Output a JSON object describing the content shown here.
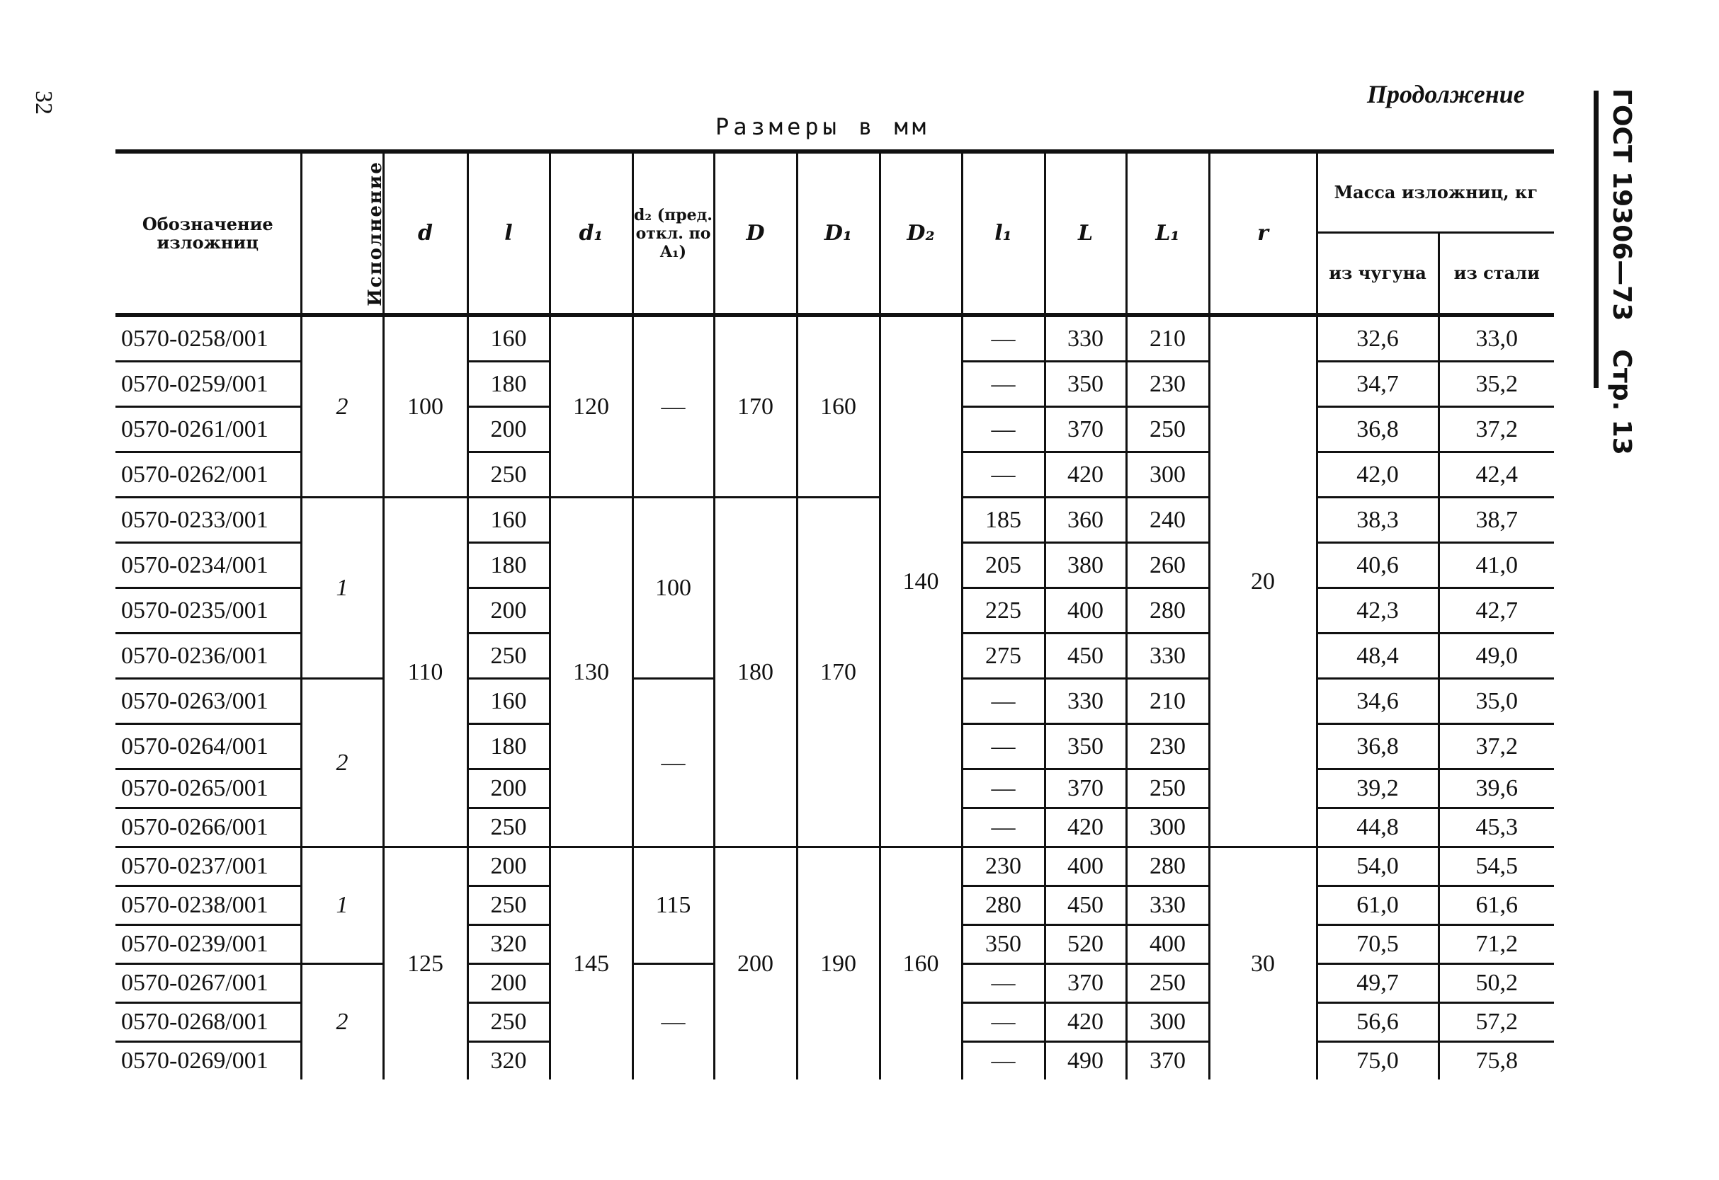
{
  "page_number": "32",
  "continuation": "Продолжение",
  "units_caption": "Размеры в мм",
  "side_header": {
    "standard": "ГОСТ 19306—73",
    "page": "Стр. 13"
  },
  "headers": {
    "designation": "Обозначение изложниц",
    "execution": "Исполнение",
    "d": "d",
    "l": "l",
    "d1": "d₁",
    "d2": "d₂ (пред. откл. по A₁)",
    "D": "D",
    "D1": "D₁",
    "D2": "D₂",
    "l1": "l₁",
    "L": "L",
    "L1": "L₁",
    "r": "r",
    "mass": "Масса изложниц, кг",
    "mass_iron": "из чугуна",
    "mass_steel": "из стали"
  },
  "rows": [
    {
      "designation": "0570-0258/001",
      "l": "160",
      "l1": "—",
      "L": "330",
      "L1": "210",
      "iron": "32,6",
      "steel": "33,0"
    },
    {
      "designation": "0570-0259/001",
      "l": "180",
      "l1": "—",
      "L": "350",
      "L1": "230",
      "iron": "34,7",
      "steel": "35,2"
    },
    {
      "designation": "0570-0261/001",
      "l": "200",
      "l1": "—",
      "L": "370",
      "L1": "250",
      "iron": "36,8",
      "steel": "37,2"
    },
    {
      "designation": "0570-0262/001",
      "l": "250",
      "l1": "—",
      "L": "420",
      "L1": "300",
      "iron": "42,0",
      "steel": "42,4"
    },
    {
      "designation": "0570-0233/001",
      "l": "160",
      "l1": "185",
      "L": "360",
      "L1": "240",
      "iron": "38,3",
      "steel": "38,7"
    },
    {
      "designation": "0570-0234/001",
      "l": "180",
      "l1": "205",
      "L": "380",
      "L1": "260",
      "iron": "40,6",
      "steel": "41,0"
    },
    {
      "designation": "0570-0235/001",
      "l": "200",
      "l1": "225",
      "L": "400",
      "L1": "280",
      "iron": "42,3",
      "steel": "42,7"
    },
    {
      "designation": "0570-0236/001",
      "l": "250",
      "l1": "275",
      "L": "450",
      "L1": "330",
      "iron": "48,4",
      "steel": "49,0"
    },
    {
      "designation": "0570-0263/001",
      "l": "160",
      "l1": "—",
      "L": "330",
      "L1": "210",
      "iron": "34,6",
      "steel": "35,0"
    },
    {
      "designation": "0570-0264/001",
      "l": "180",
      "l1": "—",
      "L": "350",
      "L1": "230",
      "iron": "36,8",
      "steel": "37,2"
    },
    {
      "designation": "0570-0265/001",
      "l": "200",
      "l1": "—",
      "L": "370",
      "L1": "250",
      "iron": "39,2",
      "steel": "39,6"
    },
    {
      "designation": "0570-0266/001",
      "l": "250",
      "l1": "—",
      "L": "420",
      "L1": "300",
      "iron": "44,8",
      "steel": "45,3"
    },
    {
      "designation": "0570-0237/001",
      "l": "200",
      "l1": "230",
      "L": "400",
      "L1": "280",
      "iron": "54,0",
      "steel": "54,5"
    },
    {
      "designation": "0570-0238/001",
      "l": "250",
      "l1": "280",
      "L": "450",
      "L1": "330",
      "iron": "61,0",
      "steel": "61,6"
    },
    {
      "designation": "0570-0239/001",
      "l": "320",
      "l1": "350",
      "L": "520",
      "L1": "400",
      "iron": "70,5",
      "steel": "71,2"
    },
    {
      "designation": "0570-0267/001",
      "l": "200",
      "l1": "—",
      "L": "370",
      "L1": "250",
      "iron": "49,7",
      "steel": "50,2"
    },
    {
      "designation": "0570-0268/001",
      "l": "250",
      "l1": "—",
      "L": "420",
      "L1": "300",
      "iron": "56,6",
      "steel": "57,2"
    },
    {
      "designation": "0570-0269/001",
      "l": "320",
      "l1": "—",
      "L": "490",
      "L1": "370",
      "iron": "75,0",
      "steel": "75,8"
    }
  ],
  "merged": {
    "execution": [
      {
        "value": "2",
        "rows": 4
      },
      {
        "value": "1",
        "rows": 4
      },
      {
        "value": "2",
        "rows": 4
      },
      {
        "value": "1",
        "rows": 3
      },
      {
        "value": "2",
        "rows": 3
      }
    ],
    "d": [
      {
        "value": "100",
        "rows": 4
      },
      {
        "value": "110",
        "rows": 8
      },
      {
        "value": "125",
        "rows": 6
      }
    ],
    "d1": [
      {
        "value": "120",
        "rows": 4
      },
      {
        "value": "130",
        "rows": 8
      },
      {
        "value": "145",
        "rows": 6
      }
    ],
    "d2": [
      {
        "value": "—",
        "rows": 4
      },
      {
        "value": "100",
        "rows": 4
      },
      {
        "value": "—",
        "rows": 4
      },
      {
        "value": "115",
        "rows": 3
      },
      {
        "value": "—",
        "rows": 3
      }
    ],
    "D": [
      {
        "value": "170",
        "rows": 4
      },
      {
        "value": "180",
        "rows": 8
      },
      {
        "value": "200",
        "rows": 6
      }
    ],
    "D1": [
      {
        "value": "160",
        "rows": 4
      },
      {
        "value": "170",
        "rows": 8
      },
      {
        "value": "190",
        "rows": 6
      }
    ],
    "D2": [
      {
        "value": "140",
        "rows": 12
      },
      {
        "value": "160",
        "rows": 6
      }
    ],
    "r": [
      {
        "value": "20",
        "rows": 12
      },
      {
        "value": "30",
        "rows": 6
      }
    ]
  }
}
